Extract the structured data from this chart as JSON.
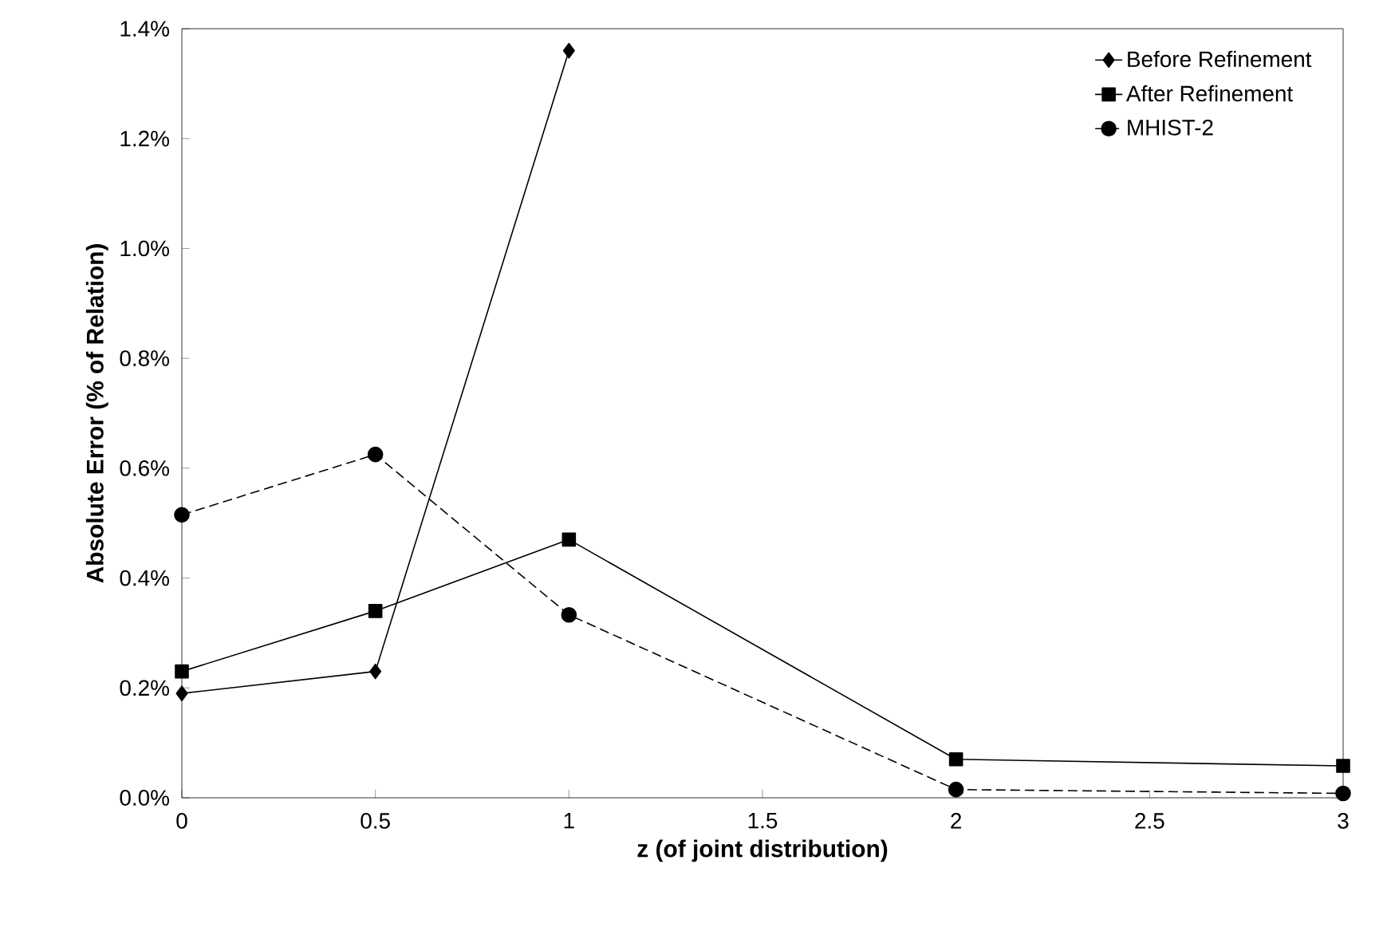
{
  "chart_data": {
    "type": "line",
    "xlabel": "z (of joint distribution)",
    "ylabel": "Absolute Error (% of Relation)",
    "x": [
      0,
      0.5,
      1,
      2,
      3
    ],
    "series": [
      {
        "name": "Before Refinement",
        "color": "#000000",
        "marker": "diamond",
        "line_style": "solid",
        "values": [
          0.19,
          0.23,
          1.36,
          null,
          null
        ]
      },
      {
        "name": "After Refinement",
        "color": "#000000",
        "marker": "square",
        "line_style": "solid",
        "values": [
          0.23,
          0.34,
          0.47,
          0.07,
          0.058
        ]
      },
      {
        "name": "MHIST-2",
        "color": "#000000",
        "marker": "circle",
        "line_style": "dashed",
        "values": [
          0.515,
          0.625,
          0.333,
          0.015,
          0.008
        ]
      }
    ],
    "xlim": [
      0,
      3
    ],
    "xticks": [
      0,
      0.5,
      1,
      1.5,
      2,
      2.5,
      3
    ],
    "ylim": [
      0,
      1.4
    ],
    "yticks": [
      {
        "value": 0,
        "label": "0.0%"
      },
      {
        "value": 0.2,
        "label": "0.2%"
      },
      {
        "value": 0.4,
        "label": "0.4%"
      },
      {
        "value": 0.6,
        "label": "0.6%"
      },
      {
        "value": 0.8,
        "label": "0.8%"
      },
      {
        "value": 1.0,
        "label": "1.0%"
      },
      {
        "value": 1.2,
        "label": "1.2%"
      },
      {
        "value": 1.4,
        "label": "1.4%"
      }
    ],
    "grid": false,
    "legend": "top right"
  }
}
